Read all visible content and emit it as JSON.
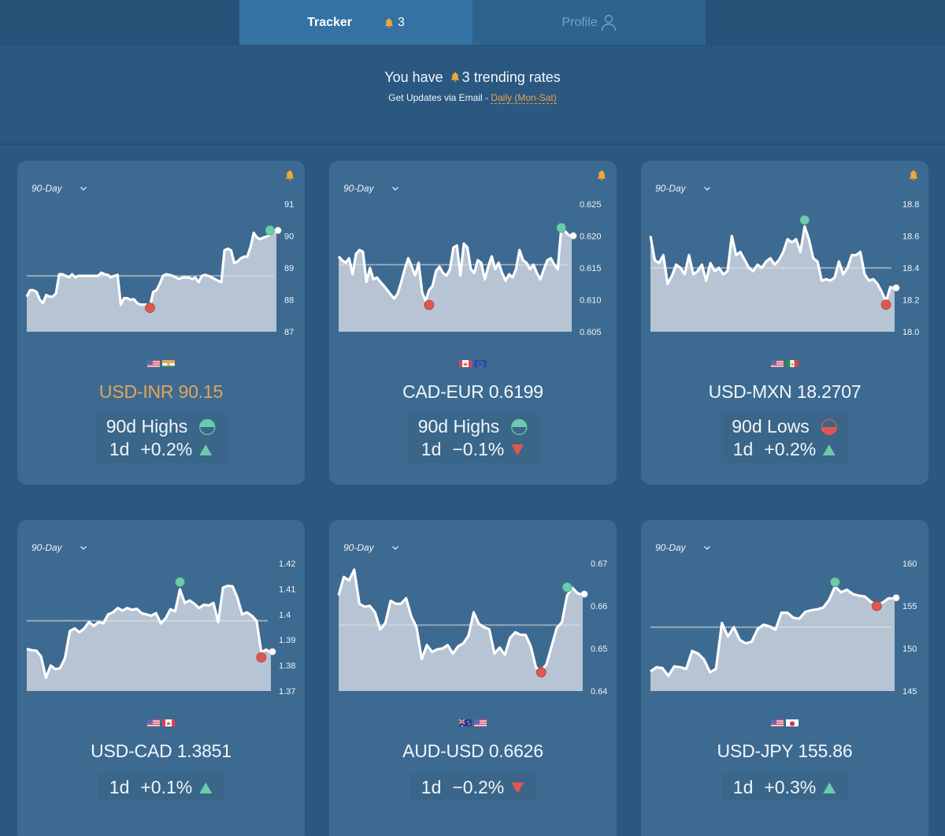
{
  "tabs": [
    {
      "label": "Tracker",
      "badge_count": "3",
      "icon": "bell-icon",
      "active": true
    },
    {
      "label": "Profile",
      "icon": "user-icon",
      "active": false
    }
  ],
  "summary": {
    "prefix": "You have",
    "count": "3",
    "suffix": "trending rates",
    "email_label": "Get Updates via Email -",
    "email_frequency": "Daily (Mon-Sat)"
  },
  "colors": {
    "high": "#6bcbab",
    "low": "#e0574f",
    "accent": "#e8a14b",
    "bell": "#f0a73a",
    "area": "#b7c4d3",
    "line": "#ffffff"
  },
  "chart_data": [
    {
      "type": "area",
      "pair": "USD-INR",
      "rate": "90.15",
      "highlight": true,
      "alert": true,
      "range_label": "90-Day",
      "flags": [
        "us",
        "in"
      ],
      "trend": "90d Highs",
      "trend_type": "high",
      "change_label": "1d",
      "change": "+0.2%",
      "direction": "up",
      "ylim": [
        87,
        91
      ],
      "yticks": [
        "87",
        "88",
        "89",
        "90",
        "91"
      ],
      "average": 88.75,
      "values": [
        88.1,
        88.3,
        88.3,
        88.25,
        88.0,
        87.9,
        88.15,
        88.1,
        88.1,
        88.2,
        88.8,
        88.8,
        88.75,
        88.7,
        88.8,
        88.7,
        88.75,
        88.75,
        88.75,
        88.75,
        88.75,
        88.75,
        88.75,
        88.85,
        88.8,
        88.78,
        88.7,
        88.75,
        88.78,
        87.85,
        88.05,
        88.05,
        88.0,
        88.02,
        87.9,
        87.85,
        87.85,
        87.85,
        87.8,
        88.25,
        88.3,
        88.5,
        88.75,
        88.8,
        88.78,
        88.75,
        88.7,
        88.65,
        88.7,
        88.7,
        88.7,
        88.65,
        88.7,
        88.55,
        88.75,
        88.78,
        88.75,
        88.7,
        88.65,
        88.6,
        88.55,
        89.55,
        89.6,
        89.55,
        89.15,
        89.2,
        89.3,
        89.35,
        89.35,
        89.65,
        90.1,
        89.95,
        89.9,
        89.95,
        89.98,
        90.05,
        90.1,
        90.15
      ],
      "high_index": 75,
      "high_value": 90.18,
      "low_index": 38,
      "low_value": 87.75
    },
    {
      "type": "area",
      "pair": "CAD-EUR",
      "rate": "0.6199",
      "highlight": false,
      "alert": true,
      "range_label": "90-Day",
      "flags": [
        "ca",
        "eu"
      ],
      "trend": "90d Highs",
      "trend_type": "high",
      "change_label": "1d",
      "change": "−0.1%",
      "direction": "down",
      "ylim": [
        0.605,
        0.625
      ],
      "yticks": [
        "0.605",
        "0.610",
        "0.615",
        "0.620",
        "0.625"
      ],
      "average": 0.6155,
      "values": [
        0.6168,
        0.6162,
        0.6158,
        0.6165,
        0.614,
        0.6172,
        0.6178,
        0.6175,
        0.6128,
        0.615,
        0.6132,
        0.6135,
        0.6128,
        0.6122,
        0.6115,
        0.6108,
        0.6102,
        0.611,
        0.6128,
        0.6148,
        0.6165,
        0.6152,
        0.6138,
        0.6158,
        0.6112,
        0.6098,
        0.6115,
        0.6122,
        0.6145,
        0.6152,
        0.6142,
        0.6138,
        0.6148,
        0.6182,
        0.6185,
        0.6138,
        0.6188,
        0.6182,
        0.6148,
        0.6142,
        0.6162,
        0.6158,
        0.6132,
        0.6152,
        0.6168,
        0.6148,
        0.6158,
        0.6142,
        0.613,
        0.614,
        0.6135,
        0.6148,
        0.6178,
        0.6162,
        0.6158,
        0.6148,
        0.6155,
        0.6142,
        0.6132,
        0.6148,
        0.6162,
        0.6165,
        0.6155,
        0.6148,
        0.6212,
        0.6208,
        0.6202,
        0.6199
      ],
      "high_index": 64,
      "high_value": 0.6213,
      "low_index": 26,
      "low_value": 0.6092
    },
    {
      "type": "area",
      "pair": "USD-MXN",
      "rate": "18.2707",
      "highlight": false,
      "alert": true,
      "range_label": "90-Day",
      "flags": [
        "us",
        "mx"
      ],
      "trend": "90d Lows",
      "trend_type": "low",
      "change_label": "1d",
      "change": "+0.2%",
      "direction": "up",
      "ylim": [
        18.0,
        18.8
      ],
      "yticks": [
        "18.0",
        "18.2",
        "18.4",
        "18.6",
        "18.8"
      ],
      "average": 18.4,
      "values": [
        18.6,
        18.45,
        18.43,
        18.48,
        18.3,
        18.35,
        18.42,
        18.4,
        18.36,
        18.48,
        18.36,
        18.38,
        18.42,
        18.32,
        18.43,
        18.38,
        18.4,
        18.36,
        18.38,
        18.6,
        18.48,
        18.5,
        18.45,
        18.4,
        18.38,
        18.42,
        18.4,
        18.44,
        18.46,
        18.42,
        18.45,
        18.5,
        18.58,
        18.56,
        18.58,
        18.5,
        18.66,
        18.58,
        18.46,
        18.44,
        18.32,
        18.33,
        18.32,
        18.34,
        18.44,
        18.36,
        18.4,
        18.48,
        18.48,
        18.5,
        18.36,
        18.32,
        18.33,
        18.3,
        18.25,
        18.19,
        18.28,
        18.27
      ],
      "high_index": 36,
      "high_value": 18.7,
      "low_index": 55,
      "low_value": 18.17
    },
    {
      "type": "area",
      "pair": "USD-CAD",
      "rate": "1.3851",
      "highlight": false,
      "alert": false,
      "range_label": "90-Day",
      "flags": [
        "us",
        "ca"
      ],
      "trend": "",
      "trend_type": "",
      "change_label": "1d",
      "change": "+0.1%",
      "direction": "up",
      "ylim": [
        1.37,
        1.42
      ],
      "yticks": [
        "1.37",
        "1.38",
        "1.39",
        "1.4",
        "1.41",
        "1.42"
      ],
      "average": 1.3975,
      "values": [
        1.3865,
        1.386,
        1.3858,
        1.3835,
        1.3752,
        1.38,
        1.3785,
        1.379,
        1.383,
        1.3935,
        1.3945,
        1.393,
        1.3945,
        1.397,
        1.3955,
        1.397,
        1.3965,
        1.4,
        1.4008,
        1.4025,
        1.4015,
        1.4025,
        1.4018,
        1.4022,
        1.4005,
        1.4,
        1.3995,
        1.4005,
        1.3965,
        1.3985,
        1.402,
        1.4012,
        1.4098,
        1.4045,
        1.4055,
        1.4042,
        1.4025,
        1.4038,
        1.4035,
        1.4045,
        1.397,
        1.4105,
        1.4112,
        1.411,
        1.4065,
        1.4,
        1.4008,
        1.3995,
        1.3975,
        1.3852,
        1.3862,
        1.3851
      ],
      "high_index": 32,
      "high_value": 1.4127,
      "low_index": 49,
      "low_value": 1.3832
    },
    {
      "type": "area",
      "pair": "AUD-USD",
      "rate": "0.6626",
      "highlight": false,
      "alert": false,
      "range_label": "90-Day",
      "flags": [
        "au",
        "us"
      ],
      "trend": "",
      "trend_type": "",
      "change_label": "1d",
      "change": "−0.2%",
      "direction": "down",
      "ylim": [
        0.64,
        0.67
      ],
      "yticks": [
        "0.64",
        "0.65",
        "0.66",
        "0.67"
      ],
      "average": 0.6555,
      "values": [
        0.6625,
        0.6668,
        0.666,
        0.6685,
        0.6605,
        0.6598,
        0.66,
        0.6585,
        0.6545,
        0.656,
        0.6612,
        0.6605,
        0.6605,
        0.6618,
        0.6575,
        0.655,
        0.6475,
        0.6508,
        0.6492,
        0.6498,
        0.65,
        0.6508,
        0.6488,
        0.6505,
        0.6512,
        0.653,
        0.6585,
        0.6558,
        0.655,
        0.6545,
        0.6488,
        0.6502,
        0.6485,
        0.6525,
        0.6538,
        0.6532,
        0.6532,
        0.6505,
        0.6455,
        0.6448,
        0.6462,
        0.6505,
        0.6548,
        0.6562,
        0.6625,
        0.6643,
        0.663,
        0.6626
      ],
      "high_index": 44,
      "high_value": 0.6644,
      "low_index": 39,
      "low_value": 0.6444
    },
    {
      "type": "area",
      "pair": "USD-JPY",
      "rate": "155.86",
      "highlight": false,
      "alert": false,
      "range_label": "90-Day",
      "flags": [
        "us",
        "jp"
      ],
      "trend": "",
      "trend_type": "",
      "change_label": "1d",
      "change": "+0.3%",
      "direction": "up",
      "ylim": [
        145,
        160
      ],
      "yticks": [
        "145",
        "150",
        "155",
        "160"
      ],
      "average": 152.5,
      "values": [
        147.3,
        147.8,
        147.7,
        146.8,
        147.9,
        147.8,
        147.6,
        149.7,
        149.4,
        148.7,
        147.2,
        147.6,
        153.0,
        151.4,
        152.5,
        151.0,
        150.6,
        150.8,
        152.3,
        152.8,
        152.6,
        152.2,
        154.2,
        154.2,
        153.6,
        153.5,
        154.3,
        154.5,
        154.6,
        154.8,
        155.7,
        157.3,
        156.6,
        156.9,
        156.4,
        156.2,
        156.1,
        155.5,
        155.1,
        155.4,
        155.9,
        155.86
      ],
      "high_index": 31,
      "high_value": 157.8,
      "low_index": 38,
      "low_value": 155.0
    }
  ]
}
